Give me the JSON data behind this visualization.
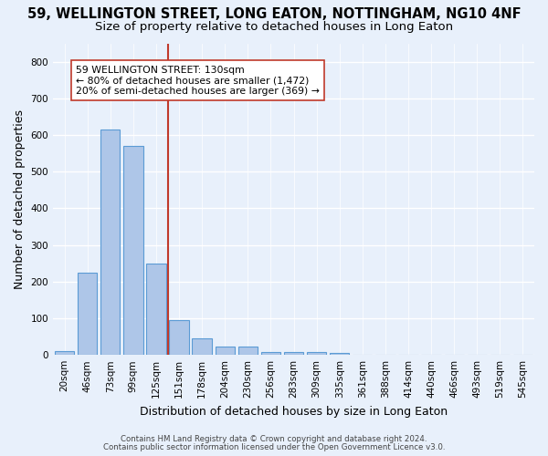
{
  "title1": "59, WELLINGTON STREET, LONG EATON, NOTTINGHAM, NG10 4NF",
  "title2": "Size of property relative to detached houses in Long Eaton",
  "xlabel": "Distribution of detached houses by size in Long Eaton",
  "ylabel": "Number of detached properties",
  "footnote1": "Contains HM Land Registry data © Crown copyright and database right 2024.",
  "footnote2": "Contains public sector information licensed under the Open Government Licence v3.0.",
  "bar_labels": [
    "20sqm",
    "46sqm",
    "73sqm",
    "99sqm",
    "125sqm",
    "151sqm",
    "178sqm",
    "204sqm",
    "230sqm",
    "256sqm",
    "283sqm",
    "309sqm",
    "335sqm",
    "361sqm",
    "388sqm",
    "414sqm",
    "440sqm",
    "466sqm",
    "493sqm",
    "519sqm",
    "545sqm"
  ],
  "bar_values": [
    10,
    225,
    615,
    570,
    250,
    95,
    45,
    22,
    22,
    8,
    8,
    8,
    5,
    0,
    0,
    0,
    0,
    0,
    0,
    0,
    0
  ],
  "bar_color": "#aec6e8",
  "bar_edge_color": "#5b9bd5",
  "bg_color": "#e8f0fb",
  "vline_x": 4.5,
  "vline_color": "#c0392b",
  "annotation_text": "59 WELLINGTON STREET: 130sqm\n← 80% of detached houses are smaller (1,472)\n20% of semi-detached houses are larger (369) →",
  "annotation_box_color": "#ffffff",
  "annotation_box_edge": "#c0392b",
  "ylim": [
    0,
    850
  ],
  "yticks": [
    0,
    100,
    200,
    300,
    400,
    500,
    600,
    700,
    800
  ],
  "grid_color": "#ffffff",
  "title_fontsize": 10.5,
  "subtitle_fontsize": 9.5,
  "axis_label_fontsize": 9,
  "tick_fontsize": 7.5,
  "footnote_fontsize": 6.2,
  "ylabel_fontsize": 9
}
